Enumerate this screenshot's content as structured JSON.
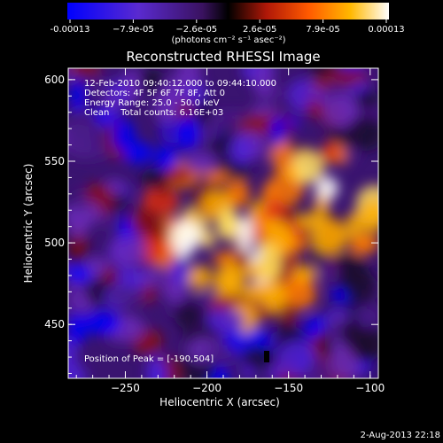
{
  "colorbar": {
    "tick_labels": [
      "-0.00013",
      "−7.9e-05",
      "−2.6e-05",
      "2.6e-05",
      "7.9e-05",
      "0.00013"
    ],
    "unit_label": "(photons cm⁻² s⁻¹ asec⁻²)",
    "range": [
      -0.00013,
      0.00013
    ]
  },
  "chart_data": {
    "type": "heatmap",
    "title": "Reconstructed RHESSI Image",
    "xlabel": "Heliocentric X (arcsec)",
    "ylabel": "Heliocentric Y (arcsec)",
    "xlim": [
      -285,
      -95
    ],
    "ylim": [
      417,
      607
    ],
    "x_ticks": [
      -250,
      -200,
      -150,
      -100
    ],
    "y_ticks": [
      450,
      500,
      550,
      600
    ],
    "x_tick_labels": [
      "−250",
      "−200",
      "−150",
      "−100"
    ],
    "y_tick_labels": [
      "450",
      "500",
      "550",
      "600"
    ],
    "colormap": [
      "#0000ff",
      "#5020d8",
      "#6a2ab8",
      "#4a1a88",
      "#1a0a30",
      "#8a1010",
      "#e03010",
      "#ff7a00",
      "#ffb000",
      "#ffe060",
      "#ffffff"
    ],
    "annotations": [
      "12-Feb-2010 09:40:12.000 to 09:44:10.000",
      "Detectors: 4F 5F 6F 7F 8F, Att 0",
      "Energy Range: 25.0 - 50.0 keV",
      "Clean    Total counts: 6.16E+03"
    ],
    "peak_label": "Position of Peak = [-190,504]",
    "peak": [
      -190,
      504
    ]
  },
  "footer": {
    "date": "2-Aug-2013 22:18"
  }
}
